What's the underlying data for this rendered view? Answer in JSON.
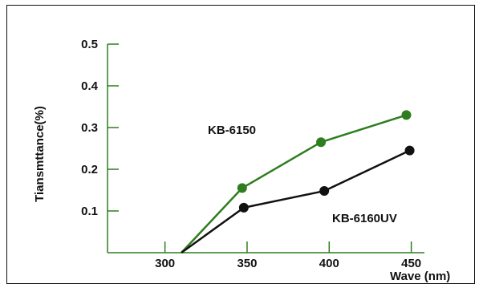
{
  "chart_data": {
    "type": "line",
    "title": "",
    "xlabel": "Wave (nm)",
    "ylabel": "Tiansmttance(%)",
    "xlim": [
      265,
      458
    ],
    "ylim": [
      0,
      0.5
    ],
    "x_ticks": [
      "300",
      "350",
      "400",
      "450"
    ],
    "x_tick_values": [
      300,
      350,
      400,
      450
    ],
    "y_ticks": [
      "0.1",
      "0.2",
      "0.3",
      "0.4",
      "0.5"
    ],
    "y_tick_values": [
      0.1,
      0.2,
      0.3,
      0.4,
      0.5
    ],
    "grid": false,
    "legend": "none",
    "series": [
      {
        "name": "KB-6150",
        "color": "#2e7d1e",
        "x": [
          310,
          347,
          395,
          447
        ],
        "y": [
          0.0,
          0.155,
          0.265,
          0.33
        ]
      },
      {
        "name": "KB-6160UV",
        "color": "#111111",
        "x": [
          310,
          348,
          397,
          449
        ],
        "y": [
          0.0,
          0.108,
          0.148,
          0.245
        ]
      }
    ]
  }
}
